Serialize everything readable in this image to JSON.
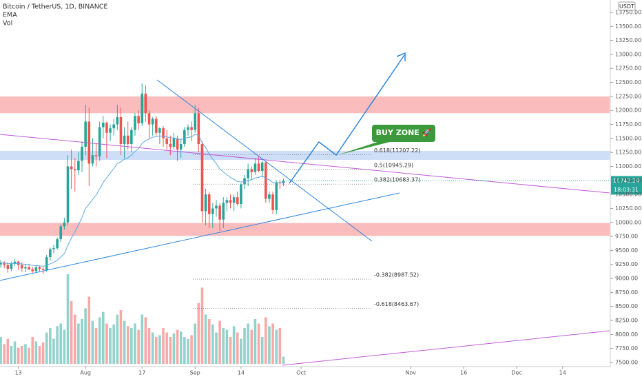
{
  "chart_data": {
    "type": "candlestick",
    "title": "Bitcoin / TetherUS, 1D, BINANCE",
    "indicators": [
      "EMA",
      "Vol"
    ],
    "currency": "USDT",
    "x": [
      7,
      8,
      9,
      10,
      11,
      12,
      13,
      14,
      15,
      16,
      17,
      18,
      19,
      20,
      21,
      22,
      23,
      24,
      25,
      26,
      27,
      28,
      29,
      30,
      31,
      32,
      33,
      34,
      35,
      36,
      37,
      38,
      39,
      40,
      41,
      42,
      43,
      44,
      45,
      46,
      47,
      48,
      49,
      50,
      51,
      52,
      53,
      54,
      55,
      56,
      57,
      58,
      59,
      60,
      61,
      62,
      63,
      64,
      65,
      66,
      67,
      68,
      69,
      70,
      71,
      72,
      73,
      74,
      75,
      76,
      77,
      78,
      79,
      80,
      81,
      82,
      83,
      84,
      85,
      86,
      87
    ],
    "open": [
      9250,
      9280,
      9240,
      9170,
      9260,
      9300,
      9240,
      9180,
      9200,
      9160,
      9130,
      9200,
      9170,
      9150,
      9380,
      9520,
      9540,
      9700,
      9930,
      10000,
      11000,
      10950,
      10930,
      11100,
      11350,
      11800,
      11050,
      11200,
      11180,
      11700,
      11780,
      11600,
      11680,
      11750,
      11880,
      11400,
      11550,
      11400,
      11650,
      11900,
      11770,
      12300,
      11950,
      11750,
      11850,
      11600,
      11680,
      11500,
      11400,
      11350,
      11500,
      11300,
      11400,
      11650,
      11700,
      11650,
      11950,
      11400,
      10200,
      10500,
      10150,
      10250,
      10300,
      10050,
      10350,
      10400,
      10350,
      10450,
      10330,
      10680,
      10790,
      10950,
      10900,
      11050,
      10920,
      11070,
      10420,
      10500,
      10220,
      10710,
      10700
    ],
    "high": [
      9330,
      9310,
      9290,
      9300,
      9350,
      9320,
      9290,
      9250,
      9260,
      9210,
      9240,
      9230,
      9200,
      9420,
      9550,
      9600,
      9730,
      9970,
      10080,
      11200,
      11300,
      11150,
      11250,
      11450,
      12100,
      12050,
      11500,
      11400,
      11800,
      11900,
      11800,
      11750,
      11850,
      12100,
      12050,
      11700,
      11800,
      11700,
      11950,
      12000,
      12480,
      12450,
      12000,
      11880,
      11900,
      11700,
      11720,
      11650,
      11550,
      11600,
      11550,
      11500,
      11700,
      11750,
      11800,
      12100,
      12050,
      11450,
      10600,
      10550,
      10350,
      10400,
      10350,
      10450,
      10450,
      10500,
      10500,
      10550,
      10700,
      10850,
      11050,
      11000,
      11150,
      11180,
      11100,
      11080,
      10550,
      10550,
      10750,
      10760,
      10780
    ],
    "low": [
      9190,
      9180,
      9100,
      9130,
      9220,
      9150,
      9120,
      9110,
      9150,
      9100,
      9110,
      9130,
      9080,
      9120,
      9320,
      9450,
      9510,
      9650,
      9870,
      9950,
      10600,
      10550,
      10850,
      10900,
      11200,
      10650,
      11000,
      11000,
      11100,
      11500,
      11150,
      11450,
      11550,
      11650,
      11200,
      11150,
      11300,
      11250,
      11550,
      11650,
      11720,
      11800,
      11500,
      11550,
      11550,
      11400,
      11350,
      11300,
      11200,
      11300,
      11100,
      11150,
      11350,
      11550,
      11450,
      11600,
      11250,
      10000,
      9950,
      9900,
      9900,
      10100,
      9850,
      9900,
      10200,
      10250,
      10200,
      10300,
      10250,
      10600,
      10650,
      10750,
      10850,
      10900,
      10800,
      10350,
      10350,
      10150,
      10150,
      10600,
      10650
    ],
    "close": [
      9280,
      9240,
      9170,
      9260,
      9300,
      9240,
      9180,
      9200,
      9160,
      9130,
      9200,
      9170,
      9150,
      9380,
      9520,
      9540,
      9700,
      9930,
      10000,
      11000,
      10950,
      10930,
      11100,
      11350,
      11800,
      11050,
      11200,
      11180,
      11700,
      11780,
      11600,
      11680,
      11750,
      11880,
      11400,
      11550,
      11400,
      11650,
      11900,
      11770,
      12300,
      11950,
      11750,
      11850,
      11600,
      11680,
      11500,
      11400,
      11350,
      11500,
      11300,
      11400,
      11650,
      11700,
      11650,
      11950,
      11400,
      10200,
      10500,
      10150,
      10250,
      10300,
      10050,
      10350,
      10400,
      10350,
      10450,
      10330,
      10680,
      10790,
      10950,
      10900,
      11050,
      10920,
      11070,
      10420,
      10500,
      10220,
      10710,
      10700,
      10742.24
    ],
    "volume": [
      30,
      22,
      28,
      20,
      25,
      18,
      20,
      22,
      18,
      30,
      25,
      20,
      24,
      35,
      40,
      28,
      42,
      45,
      38,
      100,
      70,
      55,
      45,
      50,
      62,
      75,
      48,
      40,
      52,
      58,
      45,
      40,
      44,
      55,
      60,
      48,
      42,
      40,
      45,
      38,
      55,
      52,
      40,
      35,
      30,
      32,
      40,
      35,
      30,
      34,
      38,
      36,
      30,
      28,
      32,
      45,
      68,
      85,
      55,
      50,
      44,
      35,
      48,
      40,
      38,
      30,
      42,
      35,
      28,
      40,
      45,
      38,
      50,
      45,
      30,
      52,
      42,
      45,
      38,
      40,
      8
    ],
    "up_color": "#26a69a",
    "down_color": "#ef5350",
    "ema_color": "#5aa9e6",
    "xlim": [
      6.8,
      179.3
    ],
    "ylim": [
      7426,
      13971
    ],
    "xticks": [
      {
        "value": 12,
        "label": "13"
      },
      {
        "value": 31,
        "label": "Aug"
      },
      {
        "value": 47,
        "label": "17"
      },
      {
        "value": 62,
        "label": "Sep"
      },
      {
        "value": 75,
        "label": "14"
      },
      {
        "value": 92,
        "label": "Oct"
      },
      {
        "value": 123,
        "label": "Nov"
      },
      {
        "value": 138,
        "label": "16"
      },
      {
        "value": 153,
        "label": "Dec"
      },
      {
        "value": 166,
        "label": "14"
      }
    ],
    "yticks": [
      {
        "value": 7500,
        "label": "7500.00"
      },
      {
        "value": 7750,
        "label": "7750.00"
      },
      {
        "value": 8000,
        "label": "8000.00"
      },
      {
        "value": 8250,
        "label": "8250.00"
      },
      {
        "value": 8500,
        "label": "8500.00"
      },
      {
        "value": 8750,
        "label": "8750.00"
      },
      {
        "value": 9000,
        "label": "9000.00"
      },
      {
        "value": 9250,
        "label": "9250.00"
      },
      {
        "value": 9500,
        "label": "9500.00"
      },
      {
        "value": 9750,
        "label": "9750.00"
      },
      {
        "value": 10000,
        "label": "10000.00"
      },
      {
        "value": 10250,
        "label": "10250.00"
      },
      {
        "value": 10500,
        "label": "10500.00"
      },
      {
        "value": 10750,
        "label": "10750.00"
      },
      {
        "value": 11000,
        "label": "11000.00"
      },
      {
        "value": 11250,
        "label": "11250.00"
      },
      {
        "value": 11500,
        "label": "11500.00"
      },
      {
        "value": 11750,
        "label": "11750.00"
      },
      {
        "value": 12000,
        "label": "12000.00"
      },
      {
        "value": 12250,
        "label": "12250.00"
      },
      {
        "value": 12500,
        "label": "12500.00"
      },
      {
        "value": 12750,
        "label": "12750.00"
      },
      {
        "value": 13000,
        "label": "13000.00"
      },
      {
        "value": 13250,
        "label": "13250.00"
      },
      {
        "value": 13500,
        "label": "13500.00"
      },
      {
        "value": 13750,
        "label": "13750.00"
      }
    ],
    "last_price": 10742.24,
    "countdown": "18:03:31",
    "zones": [
      {
        "from": 11950,
        "to": 12250,
        "color": "#f8a5a5"
      },
      {
        "from": 9760,
        "to": 9990,
        "color": "#f8a5a5"
      },
      {
        "from": 11117,
        "to": 11277,
        "color": "#bcd3f3"
      }
    ],
    "fib_levels": [
      {
        "price": 11207.22,
        "label": "0.618(11207.22)"
      },
      {
        "price": 10945.29,
        "label": "0.5(10945.29)"
      },
      {
        "price": 10683.37,
        "label": "0.382(10683.37)"
      },
      {
        "price": 8987.52,
        "label": "-0.382(8987.52)"
      },
      {
        "price": 8463.67,
        "label": "-0.618(8463.67)"
      }
    ],
    "buy_zone_label": "BUY ZONE 🚀"
  }
}
